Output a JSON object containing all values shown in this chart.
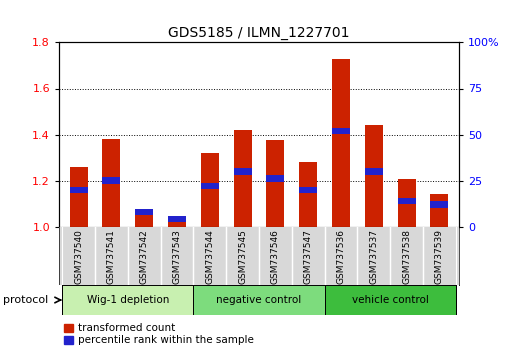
{
  "title": "GDS5185 / ILMN_1227701",
  "samples": [
    "GSM737540",
    "GSM737541",
    "GSM737542",
    "GSM737543",
    "GSM737544",
    "GSM737545",
    "GSM737546",
    "GSM737547",
    "GSM737536",
    "GSM737537",
    "GSM737538",
    "GSM737539"
  ],
  "transformed_count": [
    1.26,
    1.38,
    1.05,
    1.03,
    1.32,
    1.42,
    1.375,
    1.28,
    1.73,
    1.44,
    1.205,
    1.14
  ],
  "percentile_rank": [
    20,
    25,
    8,
    4,
    22,
    30,
    26,
    20,
    52,
    30,
    14,
    12
  ],
  "groups": [
    {
      "label": "Wig-1 depletion",
      "start": 0,
      "end": 4
    },
    {
      "label": "negative control",
      "start": 4,
      "end": 8
    },
    {
      "label": "vehicle control",
      "start": 8,
      "end": 12
    }
  ],
  "group_colors": [
    "#c8f0b0",
    "#7ddc7d",
    "#3dbd3d"
  ],
  "ylim_left": [
    1.0,
    1.8
  ],
  "ylim_right": [
    0,
    100
  ],
  "yticks_left": [
    1.0,
    1.2,
    1.4,
    1.6,
    1.8
  ],
  "yticks_right": [
    0,
    25,
    50,
    75,
    100
  ],
  "bar_color": "#cc2200",
  "percentile_color": "#2222cc",
  "bar_width": 0.55,
  "background_color": "#ffffff",
  "title_fontsize": 10,
  "protocol_label": "protocol",
  "legend_tc": "transformed count",
  "legend_pr": "percentile rank within the sample"
}
